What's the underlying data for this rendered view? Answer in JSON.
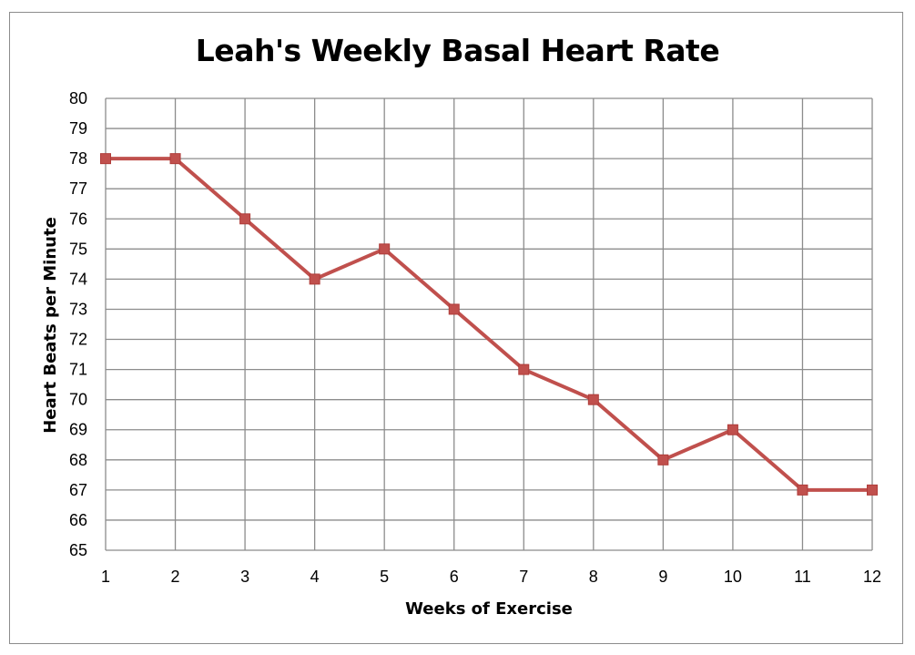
{
  "chart_data": {
    "type": "line",
    "title": "Leah's Weekly Basal Heart Rate",
    "xlabel": "Weeks of Exercise",
    "ylabel": "Heart Beats per Minute",
    "x": [
      1,
      2,
      3,
      4,
      5,
      6,
      7,
      8,
      9,
      10,
      11,
      12
    ],
    "series": [
      {
        "values": [
          78,
          78,
          76,
          74,
          75,
          73,
          71,
          70,
          68,
          69,
          67,
          67
        ]
      }
    ],
    "xlim": [
      1,
      12
    ],
    "ylim": [
      65,
      80
    ],
    "x_ticks": [
      "1",
      "2",
      "3",
      "4",
      "5",
      "6",
      "7",
      "8",
      "9",
      "10",
      "11",
      "12"
    ],
    "y_ticks": [
      "65",
      "66",
      "67",
      "68",
      "69",
      "70",
      "71",
      "72",
      "73",
      "74",
      "75",
      "76",
      "77",
      "78",
      "79",
      "80"
    ],
    "grid": true,
    "marker": "square",
    "line_color": "#c0504d"
  }
}
